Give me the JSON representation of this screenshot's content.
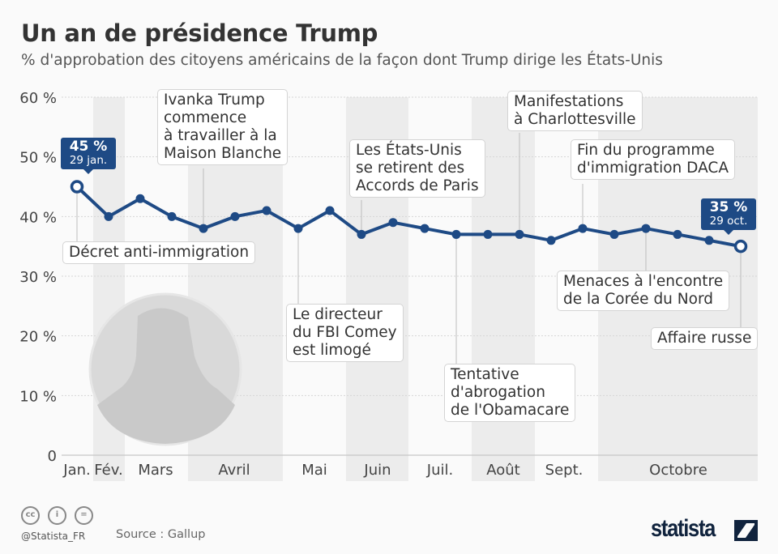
{
  "title": "Un an de présidence Trump",
  "subtitle": "% d'approbation des citoyens américains de la façon dont Trump dirige les États-Unis",
  "chart_data": {
    "type": "line",
    "ylim": [
      0,
      60
    ],
    "y_ticks": [
      "0",
      "10 %",
      "20 %",
      "30 %",
      "40 %",
      "50 %",
      "60 %"
    ],
    "y_tick_values": [
      0,
      10,
      20,
      30,
      40,
      50,
      60
    ],
    "grid": true,
    "months": [
      "Jan.",
      "Fév.",
      "Mars",
      "Avril",
      "Mai",
      "Juin",
      "Juil.",
      "Août",
      "Sept.",
      "Octobre"
    ],
    "values": [
      45,
      40,
      43,
      40,
      38,
      40,
      41,
      38,
      41,
      37,
      39,
      38,
      37,
      37,
      37,
      36,
      38,
      37,
      38,
      37,
      36,
      35
    ],
    "series_color": "#1e4a85",
    "start_label": {
      "value": "45 %",
      "date": "29 jan."
    },
    "end_label": {
      "value": "35 %",
      "date": "29 oct."
    },
    "annotations": [
      {
        "text": "Décret anti-immigration",
        "point": 0
      },
      {
        "text": "Ivanka Trump\ncommence\nà travailler à la\nMaison Blanche",
        "point": 4
      },
      {
        "text": "Le directeur\ndu FBI Comey\nest limogé",
        "point": 7
      },
      {
        "text": "Les États-Unis\nse retirent des\nAccords de Paris",
        "point": 9
      },
      {
        "text": "Tentative\nd'abrogation\nde l'Obamacare",
        "point": 12
      },
      {
        "text": "Manifestations\nà Charlottesville",
        "point": 14
      },
      {
        "text": "Fin du programme\nd'immigration DACA",
        "point": 16
      },
      {
        "text": "Menaces à l'encontre\nde la Corée du Nord",
        "point": 18
      },
      {
        "text": "Affaire russe",
        "point": 21
      }
    ]
  },
  "footer": {
    "handle": "@Statista_FR",
    "source": "Source : Gallup",
    "logo": "statista",
    "license_icons": [
      "cc-icon",
      "by-icon",
      "nd-icon"
    ]
  }
}
